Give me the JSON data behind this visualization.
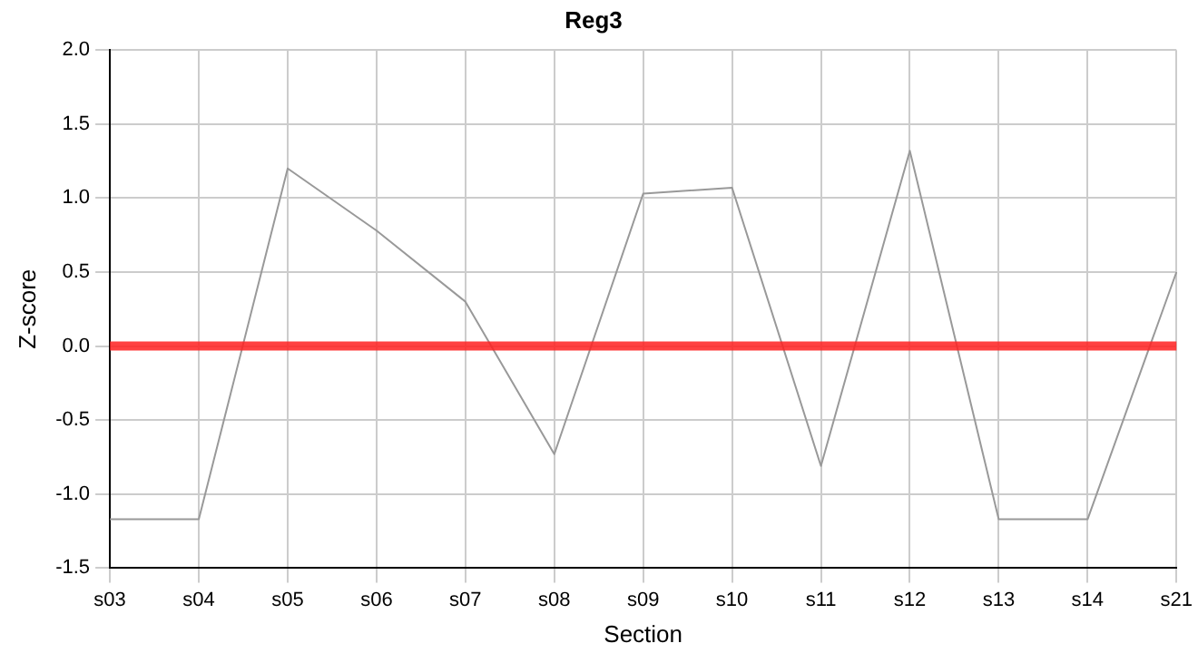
{
  "chart_data": {
    "type": "line",
    "title": "Reg3",
    "xlabel": "Section",
    "ylabel": "Z-score",
    "categories": [
      "s03",
      "s04",
      "s05",
      "s06",
      "s07",
      "s08",
      "s09",
      "s10",
      "s11",
      "s12",
      "s13",
      "s14",
      "s21"
    ],
    "series": [
      {
        "color": "#999999",
        "values": [
          -1.17,
          -1.17,
          1.2,
          0.78,
          0.3,
          -0.73,
          1.03,
          1.07,
          -0.81,
          1.32,
          -1.17,
          -1.17,
          0.5
        ]
      }
    ],
    "ylim": [
      -1.5,
      2.0
    ],
    "yticks": [
      {
        "value": -1.5,
        "label": "-1.5"
      },
      {
        "value": -1,
        "label": "-1.0"
      },
      {
        "value": -0.5,
        "label": "-0.5"
      },
      {
        "value": 0,
        "label": "0.0"
      },
      {
        "value": 0.5,
        "label": "0.5"
      },
      {
        "value": 1,
        "label": "1.0"
      },
      {
        "value": 1.5,
        "label": "1.5"
      },
      {
        "value": 2,
        "label": "2.0"
      }
    ],
    "ref_lines": [
      {
        "axis": "y",
        "value": 0,
        "color": "#ff2020"
      }
    ],
    "grid": true,
    "legend": false,
    "marker": "none",
    "line_style": "solid"
  }
}
